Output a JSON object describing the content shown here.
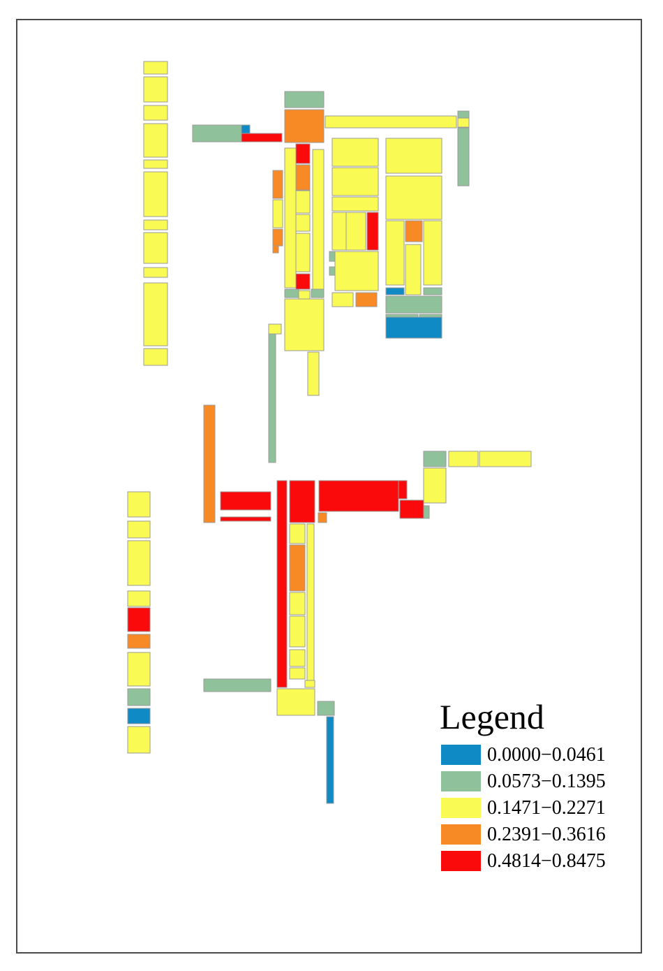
{
  "legend": {
    "title": "Legend",
    "items": [
      {
        "label": "0.0000−0.0461",
        "color": "#0f8ac4"
      },
      {
        "label": "0.0573−0.1395",
        "color": "#8fc29a"
      },
      {
        "label": "0.1471−0.2271",
        "color": "#fafa54"
      },
      {
        "label": "0.2391−0.3616",
        "color": "#f88a26"
      },
      {
        "label": "0.4814−0.8475",
        "color": "#fa0a0a"
      }
    ]
  },
  "parcels": [
    {
      "class": 2
    },
    {
      "class": 2
    },
    {
      "class": 2
    },
    {
      "class": 2
    },
    {
      "class": 2
    },
    {
      "class": 2
    },
    {
      "class": 2
    },
    {
      "class": 2
    },
    {
      "class": 2
    },
    {
      "class": 2
    },
    {
      "class": 2
    },
    {
      "class": 1
    },
    {
      "class": 3
    },
    {
      "class": 2
    },
    {
      "class": 1
    },
    {
      "class": 2
    },
    {
      "class": 1
    },
    {
      "class": 1
    },
    {
      "class": 0
    },
    {
      "class": 4
    },
    {
      "class": 2
    },
    {
      "class": 4
    },
    {
      "class": 2
    },
    {
      "class": 3
    },
    {
      "class": 2
    },
    {
      "class": 3
    },
    {
      "class": 3
    },
    {
      "class": 3
    },
    {
      "class": 2
    },
    {
      "class": 2
    },
    {
      "class": 2
    },
    {
      "class": 4
    },
    {
      "class": 1
    },
    {
      "class": 2
    },
    {
      "class": 1
    },
    {
      "class": 2
    },
    {
      "class": 2
    },
    {
      "class": 2
    },
    {
      "class": 2
    },
    {
      "class": 2
    },
    {
      "class": 2
    },
    {
      "class": 2
    },
    {
      "class": 4
    },
    {
      "class": 2
    },
    {
      "class": 2
    },
    {
      "class": 3
    },
    {
      "class": 1
    },
    {
      "class": 1
    },
    {
      "class": 2
    },
    {
      "class": 2
    },
    {
      "class": 2
    },
    {
      "class": 3
    },
    {
      "class": 2
    },
    {
      "class": 2
    },
    {
      "class": 0
    },
    {
      "class": 1
    },
    {
      "class": 1
    },
    {
      "class": 1
    },
    {
      "class": 1
    },
    {
      "class": 0
    },
    {
      "class": 2
    },
    {
      "class": 1
    },
    {
      "class": 3
    },
    {
      "class": 4
    },
    {
      "class": 4
    },
    {
      "class": 4
    },
    {
      "class": 4
    },
    {
      "class": 4
    },
    {
      "class": 4
    },
    {
      "class": 4
    },
    {
      "class": 1
    },
    {
      "class": 1
    },
    {
      "class": 2
    },
    {
      "class": 2
    },
    {
      "class": 2
    },
    {
      "class": 3
    },
    {
      "class": 2
    },
    {
      "class": 2
    },
    {
      "class": 2
    },
    {
      "class": 2
    },
    {
      "class": 4
    },
    {
      "class": 3
    },
    {
      "class": 2
    },
    {
      "class": 2
    },
    {
      "class": 2
    },
    {
      "class": 2
    },
    {
      "class": 3
    },
    {
      "class": 2
    },
    {
      "class": 2
    },
    {
      "class": 2
    },
    {
      "class": 2
    },
    {
      "class": 2
    },
    {
      "class": 1
    },
    {
      "class": 0
    },
    {
      "class": 2
    },
    {
      "class": 1
    },
    {
      "class": 1
    },
    {
      "class": 0
    }
  ]
}
